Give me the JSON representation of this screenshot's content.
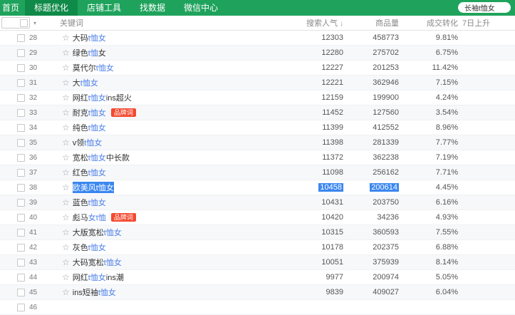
{
  "navbar": {
    "items": [
      {
        "label": "首页",
        "active": false
      },
      {
        "label": "标题优化",
        "active": true
      },
      {
        "label": "店铺工具",
        "active": false
      },
      {
        "label": "找数据",
        "active": false
      },
      {
        "label": "微信中心",
        "active": false
      }
    ],
    "search_value": "长袖t恤女"
  },
  "colors": {
    "navbar_green": "#1FA35C",
    "navbar_active_green": "#0F8A48",
    "link_blue": "#4C7FE8",
    "badge_red": "#F4492F",
    "selection_blue": "#3B87F0"
  },
  "table": {
    "headers": {
      "keyword": "关键词",
      "popularity": "搜索人气",
      "sort_icon": "↓",
      "items": "商品量",
      "conversion": "成交转化",
      "rise": "7日上升"
    },
    "badge_label": "品牌词",
    "rows": [
      {
        "num": "28",
        "segments": [
          {
            "text": "大码",
            "match": false
          },
          {
            "text": "t恤女",
            "match": true
          }
        ],
        "badge": false,
        "selected": false,
        "popularity": "12303",
        "items": "458773",
        "conversion": "9.81%"
      },
      {
        "num": "29",
        "segments": [
          {
            "text": "绿色",
            "match": false
          },
          {
            "text": "t恤",
            "match": true
          },
          {
            "text": " 女",
            "match": false
          }
        ],
        "badge": false,
        "selected": false,
        "popularity": "12280",
        "items": "275702",
        "conversion": "6.75%"
      },
      {
        "num": "30",
        "segments": [
          {
            "text": "莫代尔",
            "match": false
          },
          {
            "text": "t恤女",
            "match": true
          }
        ],
        "badge": false,
        "selected": false,
        "popularity": "12227",
        "items": "201253",
        "conversion": "11.42%"
      },
      {
        "num": "31",
        "segments": [
          {
            "text": "大",
            "match": false
          },
          {
            "text": "t恤女",
            "match": true
          }
        ],
        "badge": false,
        "selected": false,
        "popularity": "12221",
        "items": "362946",
        "conversion": "7.15%"
      },
      {
        "num": "32",
        "segments": [
          {
            "text": "网红",
            "match": false
          },
          {
            "text": "t恤女",
            "match": true
          },
          {
            "text": "ins超火",
            "match": false
          }
        ],
        "badge": false,
        "selected": false,
        "popularity": "12159",
        "items": "199900",
        "conversion": "4.24%"
      },
      {
        "num": "33",
        "segments": [
          {
            "text": "耐克",
            "match": false
          },
          {
            "text": "t恤女",
            "match": true
          }
        ],
        "badge": true,
        "selected": false,
        "popularity": "11452",
        "items": "127560",
        "conversion": "3.54%"
      },
      {
        "num": "34",
        "segments": [
          {
            "text": "纯色",
            "match": false
          },
          {
            "text": "t恤女",
            "match": true
          }
        ],
        "badge": false,
        "selected": false,
        "popularity": "11399",
        "items": "412552",
        "conversion": "8.96%"
      },
      {
        "num": "35",
        "segments": [
          {
            "text": "v领",
            "match": false
          },
          {
            "text": "t恤女",
            "match": true
          }
        ],
        "badge": false,
        "selected": false,
        "popularity": "11398",
        "items": "281339",
        "conversion": "7.77%"
      },
      {
        "num": "36",
        "segments": [
          {
            "text": "宽松",
            "match": false
          },
          {
            "text": "t恤女",
            "match": true
          },
          {
            "text": " 中长款",
            "match": false
          }
        ],
        "badge": false,
        "selected": false,
        "popularity": "11372",
        "items": "362238",
        "conversion": "7.19%"
      },
      {
        "num": "37",
        "segments": [
          {
            "text": "红色",
            "match": false
          },
          {
            "text": "t恤女",
            "match": true
          }
        ],
        "badge": false,
        "selected": false,
        "popularity": "11098",
        "items": "256162",
        "conversion": "7.71%"
      },
      {
        "num": "38",
        "segments": [
          {
            "text": "欧美风",
            "match": false
          },
          {
            "text": "t恤女",
            "match": true
          }
        ],
        "badge": false,
        "selected": true,
        "popularity": "10458",
        "items": "200614",
        "conversion": "4.45%"
      },
      {
        "num": "39",
        "segments": [
          {
            "text": "蓝色",
            "match": false
          },
          {
            "text": "t恤女",
            "match": true
          }
        ],
        "badge": false,
        "selected": false,
        "popularity": "10431",
        "items": "203750",
        "conversion": "6.16%"
      },
      {
        "num": "40",
        "segments": [
          {
            "text": "彪马",
            "match": false
          },
          {
            "text": "女t恤",
            "match": true
          }
        ],
        "badge": true,
        "selected": false,
        "popularity": "10420",
        "items": "34236",
        "conversion": "4.93%"
      },
      {
        "num": "41",
        "segments": [
          {
            "text": "大版宽松",
            "match": false
          },
          {
            "text": "t恤女",
            "match": true
          }
        ],
        "badge": false,
        "selected": false,
        "popularity": "10315",
        "items": "360593",
        "conversion": "7.55%"
      },
      {
        "num": "42",
        "segments": [
          {
            "text": "灰色",
            "match": false
          },
          {
            "text": "t恤女",
            "match": true
          }
        ],
        "badge": false,
        "selected": false,
        "popularity": "10178",
        "items": "202375",
        "conversion": "6.88%"
      },
      {
        "num": "43",
        "segments": [
          {
            "text": "大码宽松",
            "match": false
          },
          {
            "text": "t恤女",
            "match": true
          }
        ],
        "badge": false,
        "selected": false,
        "popularity": "10051",
        "items": "375939",
        "conversion": "8.14%"
      },
      {
        "num": "44",
        "segments": [
          {
            "text": "网红",
            "match": false
          },
          {
            "text": "t恤女",
            "match": true
          },
          {
            "text": "ins潮",
            "match": false
          }
        ],
        "badge": false,
        "selected": false,
        "popularity": "9977",
        "items": "200974",
        "conversion": "5.05%"
      },
      {
        "num": "45",
        "segments": [
          {
            "text": "ins短袖",
            "match": false
          },
          {
            "text": "t恤女",
            "match": true
          }
        ],
        "badge": false,
        "selected": false,
        "popularity": "9839",
        "items": "409027",
        "conversion": "6.04%"
      },
      {
        "num": "46",
        "segments": [],
        "badge": false,
        "selected": false,
        "popularity": "",
        "items": "",
        "conversion": ""
      }
    ]
  }
}
